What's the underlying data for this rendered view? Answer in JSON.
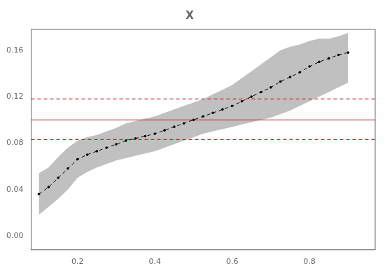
{
  "chart_data": {
    "type": "line",
    "title": "X",
    "x": [
      0.1,
      0.125,
      0.15,
      0.175,
      0.2,
      0.225,
      0.25,
      0.275,
      0.3,
      0.325,
      0.35,
      0.375,
      0.4,
      0.425,
      0.45,
      0.475,
      0.5,
      0.525,
      0.55,
      0.575,
      0.6,
      0.625,
      0.65,
      0.675,
      0.7,
      0.725,
      0.75,
      0.775,
      0.8,
      0.825,
      0.85,
      0.875,
      0.9
    ],
    "values": [
      0.036,
      0.042,
      0.05,
      0.058,
      0.066,
      0.07,
      0.073,
      0.076,
      0.079,
      0.082,
      0.084,
      0.086,
      0.088,
      0.091,
      0.094,
      0.097,
      0.1,
      0.103,
      0.106,
      0.109,
      0.112,
      0.116,
      0.12,
      0.124,
      0.128,
      0.133,
      0.137,
      0.141,
      0.146,
      0.15,
      0.153,
      0.156,
      0.158
    ],
    "color": "#000000",
    "line_style": "dashed",
    "marker": "point",
    "band": {
      "lower": [
        0.018,
        0.025,
        0.032,
        0.04,
        0.05,
        0.055,
        0.059,
        0.062,
        0.065,
        0.067,
        0.069,
        0.071,
        0.073,
        0.076,
        0.079,
        0.082,
        0.085,
        0.088,
        0.09,
        0.092,
        0.094,
        0.096,
        0.098,
        0.1,
        0.102,
        0.105,
        0.108,
        0.112,
        0.116,
        0.12,
        0.124,
        0.128,
        0.132
      ],
      "upper": [
        0.054,
        0.059,
        0.068,
        0.076,
        0.082,
        0.085,
        0.087,
        0.09,
        0.093,
        0.097,
        0.099,
        0.101,
        0.103,
        0.106,
        0.109,
        0.112,
        0.115,
        0.118,
        0.122,
        0.126,
        0.13,
        0.136,
        0.142,
        0.148,
        0.154,
        0.16,
        0.163,
        0.165,
        0.168,
        0.17,
        0.17,
        0.172,
        0.175
      ],
      "color": "#c0c0c0"
    },
    "reference_lines": [
      {
        "y": 0.1,
        "color": "#cc2222",
        "line_style": "solid"
      },
      {
        "y": 0.118,
        "color": "#cc2222",
        "line_style": "dashed"
      },
      {
        "y": 0.083,
        "color": "#cc2222",
        "line_style": "dashed"
      }
    ],
    "xlim": [
      0.08,
      0.97
    ],
    "ylim": [
      -0.012,
      0.178
    ],
    "xticks": [
      0.2,
      0.4,
      0.6,
      0.8
    ],
    "yticks": [
      {
        "value": 0,
        "label": "0.00"
      },
      0.04,
      0.08,
      0.12,
      0.16
    ],
    "grid": false
  }
}
